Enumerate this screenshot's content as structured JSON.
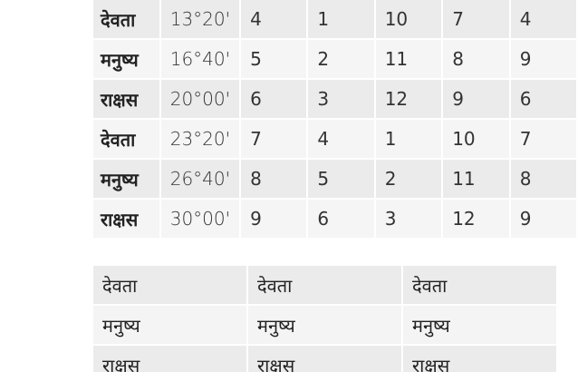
{
  "table1": {
    "rows": [
      {
        "gana": "देवता",
        "degree": "13°20'",
        "values": [
          "4",
          "1",
          "10",
          "7",
          "4"
        ]
      },
      {
        "gana": "मनुष्य",
        "degree": "16°40'",
        "values": [
          "5",
          "2",
          "11",
          "8",
          "9"
        ]
      },
      {
        "gana": "राक्षस",
        "degree": "20°00'",
        "values": [
          "6",
          "3",
          "12",
          "9",
          "6"
        ]
      },
      {
        "gana": "देवता",
        "degree": "23°20'",
        "values": [
          "7",
          "4",
          "1",
          "10",
          "7"
        ]
      },
      {
        "gana": "मनुष्य",
        "degree": "26°40'",
        "values": [
          "8",
          "5",
          "2",
          "11",
          "8"
        ]
      },
      {
        "gana": "राक्षस",
        "degree": "30°00'",
        "values": [
          "9",
          "6",
          "3",
          "12",
          "9"
        ]
      }
    ]
  },
  "table2": {
    "rows": [
      [
        "देवता",
        "देवता",
        "देवता"
      ],
      [
        "मनुष्य",
        "मनुष्य",
        "मनुष्य"
      ],
      [
        "राक्षस",
        "राक्षस",
        "राक्षस"
      ]
    ]
  }
}
